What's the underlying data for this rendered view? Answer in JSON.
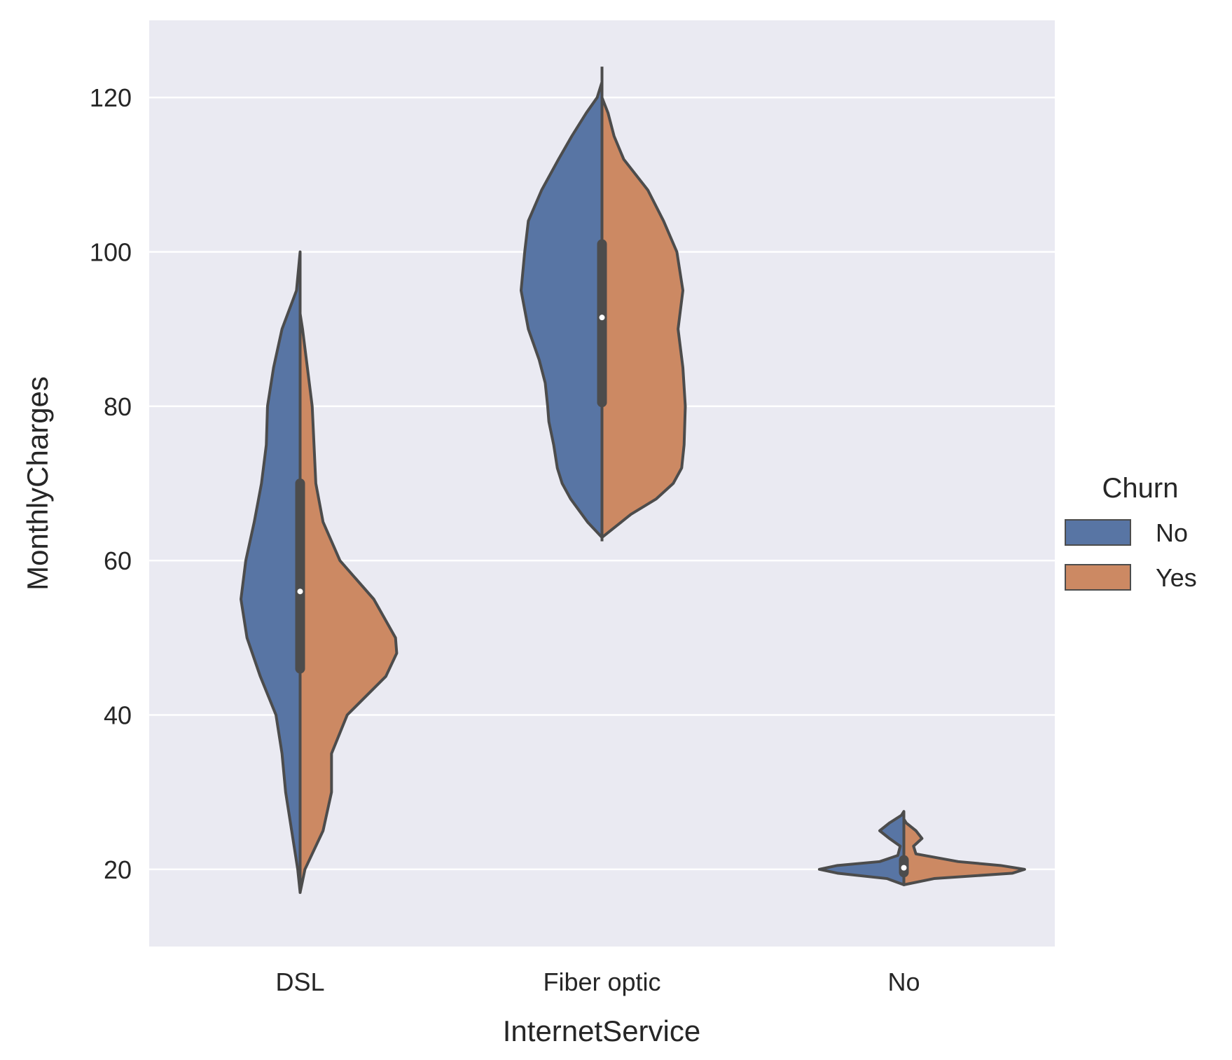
{
  "chart_data": {
    "type": "violin",
    "split": true,
    "xlabel": "InternetService",
    "ylabel": "MonthlyCharges",
    "categories": [
      "DSL",
      "Fiber optic",
      "No"
    ],
    "ylim": [
      10,
      130
    ],
    "yticks": [
      20,
      40,
      60,
      80,
      100,
      120
    ],
    "grid": true,
    "legend": {
      "title": "Churn",
      "placement": "right",
      "entries": [
        {
          "label": "No",
          "color": "#5875a4"
        },
        {
          "label": "Yes",
          "color": "#cc8963"
        }
      ]
    },
    "series": [
      {
        "name": "No",
        "color": "#5875a4",
        "side": "left",
        "violins": [
          {
            "category": "DSL",
            "profile": [
              [
                17,
                0.0
              ],
              [
                20,
                0.02
              ],
              [
                25,
                0.07
              ],
              [
                30,
                0.12
              ],
              [
                35,
                0.15
              ],
              [
                40,
                0.2
              ],
              [
                45,
                0.33
              ],
              [
                50,
                0.44
              ],
              [
                55,
                0.49
              ],
              [
                60,
                0.45
              ],
              [
                65,
                0.38
              ],
              [
                70,
                0.32
              ],
              [
                75,
                0.28
              ],
              [
                80,
                0.27
              ],
              [
                85,
                0.22
              ],
              [
                90,
                0.15
              ],
              [
                95,
                0.03
              ],
              [
                100,
                0.0
              ]
            ]
          },
          {
            "category": "Fiber optic",
            "profile": [
              [
                63,
                0.0
              ],
              [
                65,
                0.12
              ],
              [
                68,
                0.26
              ],
              [
                70,
                0.33
              ],
              [
                72,
                0.37
              ],
              [
                75,
                0.4
              ],
              [
                78,
                0.44
              ],
              [
                80,
                0.45
              ],
              [
                83,
                0.47
              ],
              [
                86,
                0.52
              ],
              [
                90,
                0.61
              ],
              [
                95,
                0.67
              ],
              [
                100,
                0.64
              ],
              [
                104,
                0.61
              ],
              [
                108,
                0.5
              ],
              [
                112,
                0.36
              ],
              [
                115,
                0.25
              ],
              [
                118,
                0.13
              ],
              [
                120,
                0.04
              ],
              [
                122,
                0.0
              ]
            ]
          },
          {
            "category": "No",
            "profile": [
              [
                18,
                0.0
              ],
              [
                18.8,
                0.14
              ],
              [
                19.5,
                0.55
              ],
              [
                20,
                0.7
              ],
              [
                20.5,
                0.55
              ],
              [
                21,
                0.2
              ],
              [
                21.8,
                0.05
              ],
              [
                23,
                0.03
              ],
              [
                24,
                0.12
              ],
              [
                25,
                0.2
              ],
              [
                26,
                0.12
              ],
              [
                27,
                0.02
              ],
              [
                27.5,
                0.0
              ]
            ]
          }
        ]
      },
      {
        "name": "Yes",
        "color": "#cc8963",
        "side": "right",
        "violins": [
          {
            "category": "DSL",
            "profile": [
              [
                17,
                0.0
              ],
              [
                20,
                0.04
              ],
              [
                25,
                0.19
              ],
              [
                30,
                0.26
              ],
              [
                35,
                0.26
              ],
              [
                40,
                0.39
              ],
              [
                45,
                0.71
              ],
              [
                48,
                0.8
              ],
              [
                50,
                0.79
              ],
              [
                55,
                0.61
              ],
              [
                60,
                0.33
              ],
              [
                65,
                0.19
              ],
              [
                70,
                0.13
              ],
              [
                80,
                0.1
              ],
              [
                85,
                0.06
              ],
              [
                90,
                0.02
              ],
              [
                92,
                0.0
              ]
            ]
          },
          {
            "category": "Fiber optic",
            "profile": [
              [
                63,
                0.0
              ],
              [
                66,
                0.24
              ],
              [
                68,
                0.45
              ],
              [
                70,
                0.59
              ],
              [
                72,
                0.66
              ],
              [
                75,
                0.68
              ],
              [
                80,
                0.69
              ],
              [
                85,
                0.67
              ],
              [
                90,
                0.63
              ],
              [
                95,
                0.67
              ],
              [
                100,
                0.62
              ],
              [
                104,
                0.51
              ],
              [
                108,
                0.38
              ],
              [
                112,
                0.18
              ],
              [
                115,
                0.1
              ],
              [
                118,
                0.05
              ],
              [
                120,
                0.0
              ]
            ]
          },
          {
            "category": "No",
            "profile": [
              [
                18,
                0.0
              ],
              [
                18.8,
                0.25
              ],
              [
                19.5,
                0.9
              ],
              [
                20,
                1.0
              ],
              [
                20.5,
                0.8
              ],
              [
                21,
                0.45
              ],
              [
                22,
                0.1
              ],
              [
                23,
                0.08
              ],
              [
                24,
                0.15
              ],
              [
                25,
                0.1
              ],
              [
                26,
                0.02
              ],
              [
                26.5,
                0.0
              ]
            ]
          }
        ]
      }
    ],
    "boxes": [
      {
        "category": "DSL",
        "q1": 46,
        "median": 56,
        "q3": 70,
        "whisker_low": 17,
        "whisker_high": 100
      },
      {
        "category": "Fiber optic",
        "q1": 80.5,
        "median": 91.5,
        "q3": 101,
        "whisker_low": 62.5,
        "whisker_high": 124
      },
      {
        "category": "No",
        "q1": 19.6,
        "median": 20.2,
        "q3": 21.2,
        "whisker_low": 18,
        "whisker_high": 27.5
      }
    ]
  },
  "style": {
    "background": "#eaeaf2",
    "grid_color": "#ffffff",
    "edge_color": "#4c4c4c",
    "median_color": "#ffffff"
  }
}
